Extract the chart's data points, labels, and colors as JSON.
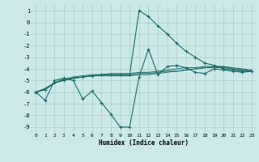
{
  "background_color": "#cde8e8",
  "grid_color": "#aacccc",
  "line_color": "#1a6b6b",
  "xlabel": "Humidex (Indice chaleur)",
  "xlim": [
    -0.5,
    23.5
  ],
  "ylim": [
    -9.5,
    1.5
  ],
  "yticks": [
    1,
    0,
    -1,
    -2,
    -3,
    -4,
    -5,
    -6,
    -7,
    -8,
    -9
  ],
  "xticks": [
    0,
    1,
    2,
    3,
    4,
    5,
    6,
    7,
    8,
    9,
    10,
    11,
    12,
    13,
    14,
    15,
    16,
    17,
    18,
    19,
    20,
    21,
    22,
    23
  ],
  "series": {
    "volatile": [
      0,
      -6.0,
      1,
      -6.7,
      2,
      -5.0,
      3,
      -4.8,
      4,
      -5.0,
      5,
      -6.6,
      6,
      -5.9,
      7,
      -6.9,
      8,
      -7.9,
      9,
      -9.0,
      10,
      -9.0,
      11,
      -4.7,
      12,
      -2.3,
      13,
      -4.5,
      14,
      -3.8,
      15,
      -3.7,
      16,
      -3.9,
      17,
      -4.3,
      18,
      -4.4,
      19,
      -4.0,
      20,
      -4.1,
      21,
      -4.2,
      22,
      -4.3,
      23,
      -4.2
    ],
    "peak": [
      0,
      -6.0,
      1,
      -5.8,
      2,
      -5.2,
      3,
      -5.0,
      4,
      -4.8,
      5,
      -4.7,
      6,
      -4.6,
      7,
      -4.5,
      8,
      -4.5,
      9,
      -4.5,
      10,
      -4.5,
      11,
      1.0,
      12,
      0.5,
      13,
      -0.3,
      14,
      -1.0,
      15,
      -1.8,
      16,
      -2.5,
      17,
      -3.0,
      18,
      -3.5,
      19,
      -3.7,
      20,
      -4.0,
      21,
      -4.1,
      22,
      -4.2,
      23,
      -4.2
    ],
    "flat1": [
      0,
      -6.0,
      1,
      -5.7,
      2,
      -5.2,
      3,
      -4.9,
      4,
      -4.8,
      5,
      -4.7,
      6,
      -4.6,
      7,
      -4.6,
      8,
      -4.6,
      9,
      -4.6,
      10,
      -4.6,
      11,
      -4.5,
      12,
      -4.5,
      13,
      -4.4,
      14,
      -4.3,
      15,
      -4.2,
      16,
      -4.1,
      17,
      -4.0,
      18,
      -3.9,
      19,
      -3.8,
      20,
      -3.8,
      21,
      -4.0,
      22,
      -4.1,
      23,
      -4.2
    ],
    "flat2": [
      0,
      -6.0,
      1,
      -5.7,
      2,
      -5.2,
      3,
      -4.9,
      4,
      -4.7,
      5,
      -4.6,
      6,
      -4.5,
      7,
      -4.5,
      8,
      -4.4,
      9,
      -4.4,
      10,
      -4.4,
      11,
      -4.3,
      12,
      -4.3,
      13,
      -4.2,
      14,
      -4.1,
      15,
      -4.0,
      16,
      -3.9,
      17,
      -3.9,
      18,
      -3.8,
      19,
      -3.8,
      20,
      -3.8,
      21,
      -3.9,
      22,
      -4.0,
      23,
      -4.1
    ],
    "flat3": [
      0,
      -6.0,
      1,
      -5.7,
      2,
      -5.2,
      3,
      -4.9,
      4,
      -4.8,
      5,
      -4.7,
      6,
      -4.6,
      7,
      -4.5,
      8,
      -4.5,
      9,
      -4.5,
      10,
      -4.5,
      11,
      -4.4,
      12,
      -4.4,
      13,
      -4.3,
      14,
      -4.2,
      15,
      -4.2,
      16,
      -4.1,
      17,
      -4.0,
      18,
      -3.9,
      19,
      -3.9,
      20,
      -3.9,
      21,
      -4.0,
      22,
      -4.1,
      23,
      -4.2
    ]
  }
}
